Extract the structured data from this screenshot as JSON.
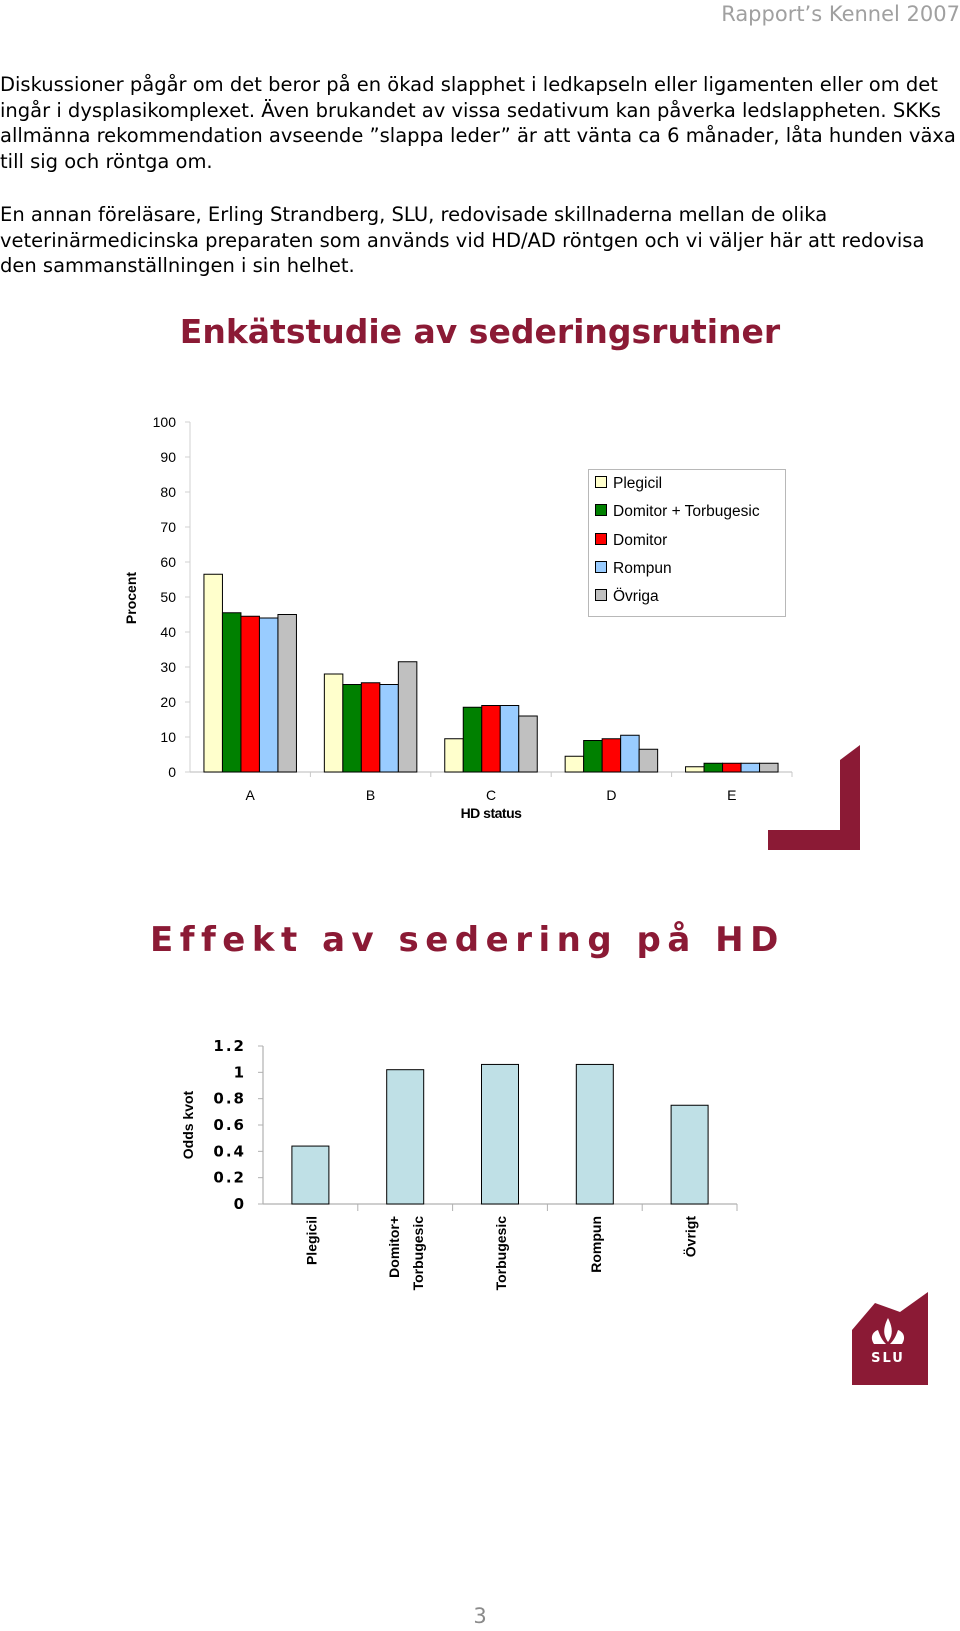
{
  "header": {
    "text": "Rapport’s Kennel 2007"
  },
  "paragraphs": {
    "p1": "Diskussioner pågår om det beror på en ökad slapphet i ledkapseln eller ligamenten eller om det ingår i dysplasikomplexet. Även brukandet av vissa sedativum kan påverka ledslappheten. SKKs allmänna rekommendation avseende ”slappa leder” är att vänta ca 6 månader, låta hunden växa till sig och röntga om.",
    "p2": "En annan föreläsare, Erling Strandberg, SLU, redovisade skillnaderna mellan de olika veterinärmedicinska preparaten som används vid HD/AD röntgen och vi väljer här att redovisa den sammanställningen i sin helhet."
  },
  "chart_data": [
    {
      "type": "bar",
      "title": "Enkätstudie av sederingsrutiner",
      "xlabel": "HD status",
      "ylabel": "Procent",
      "ylim": [
        0,
        100
      ],
      "yticks": [
        "100",
        "90",
        "80",
        "70",
        "60",
        "50",
        "40",
        "30",
        "20",
        "10",
        "0"
      ],
      "categories": [
        "A",
        "B",
        "C",
        "D",
        "E"
      ],
      "legend_position": "right",
      "series": [
        {
          "name": "Plegicil",
          "color": "#ffffcc",
          "values": [
            56.5,
            28,
            9.5,
            4.5,
            1.5
          ]
        },
        {
          "name": "Domitor + Torbugesic",
          "color": "#008000",
          "values": [
            45.5,
            25,
            18.5,
            9,
            2.5
          ]
        },
        {
          "name": "Domitor",
          "color": "#ff0000",
          "values": [
            44.5,
            25.5,
            19,
            9.5,
            2.5
          ]
        },
        {
          "name": "Rompun",
          "color": "#99ccff",
          "values": [
            44,
            25,
            19,
            10.5,
            2.5
          ]
        },
        {
          "name": "Övriga",
          "color": "#c0c0c0",
          "values": [
            45,
            31.5,
            16,
            6.5,
            2.5
          ]
        }
      ]
    },
    {
      "type": "bar",
      "title": "Effekt av sedering på HD",
      "xlabel": "",
      "ylabel": "Odds kvot",
      "ylim": [
        0,
        1.2
      ],
      "yticks": [
        "1.2",
        "1",
        "0.8",
        "0.6",
        "0.4",
        "0.2",
        "0"
      ],
      "categories": [
        [
          "Plegicil"
        ],
        [
          "Domitor+",
          "Torbugesic"
        ],
        [
          "Torbugesic"
        ],
        [
          "Rompun"
        ],
        [
          "Övrigt"
        ]
      ],
      "bar_color": "#bfe0e6",
      "values": [
        0.44,
        1.02,
        1.06,
        1.06,
        0.75
      ]
    }
  ],
  "page_number": "3",
  "logo": {
    "text": "SLU",
    "color": "#8b1a35"
  }
}
